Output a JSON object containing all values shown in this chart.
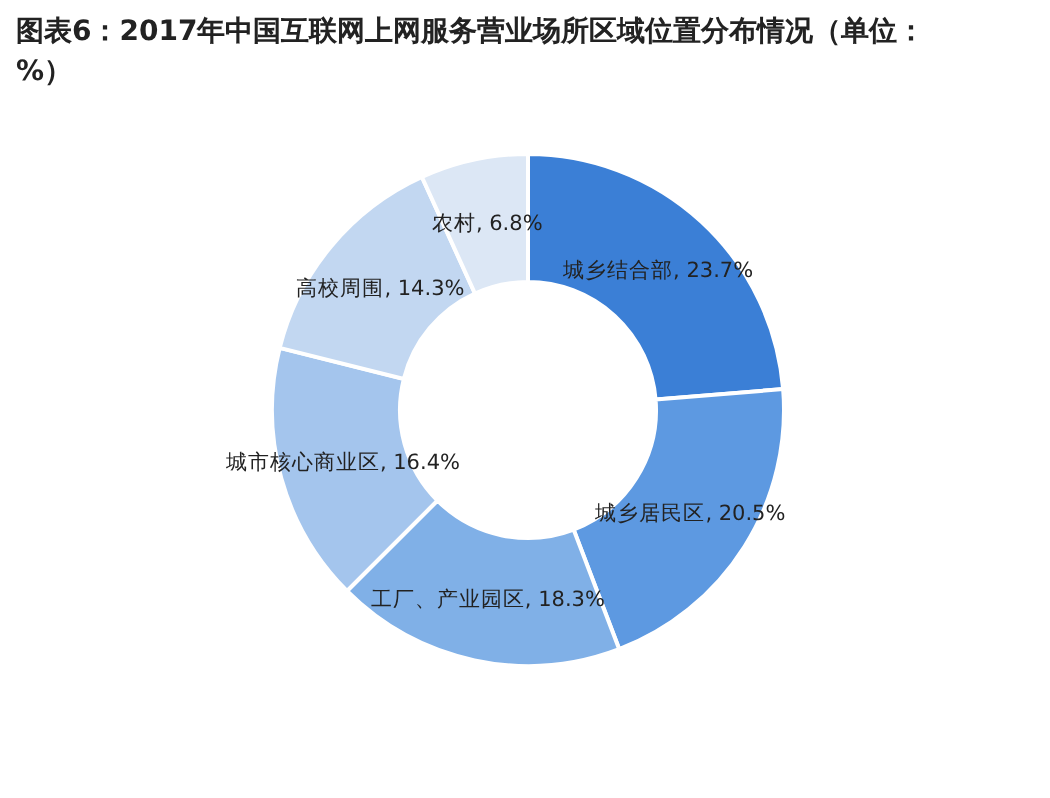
{
  "chart_data": {
    "type": "donut",
    "title": "图表6：2017年中国互联网上网服务营业场所区域位置分布情况（单位：%）",
    "categories": [
      "城乡结合部",
      "城乡居民区",
      "工厂、产业园区",
      "城市核心商业区",
      "高校周围",
      "农村"
    ],
    "values": [
      23.7,
      20.5,
      18.3,
      16.4,
      14.3,
      6.8
    ],
    "colors": [
      "#3b7fd6",
      "#5d99e1",
      "#80b0e7",
      "#a4c5ed",
      "#c2d7f1",
      "#dce7f5"
    ],
    "value_labels": [
      ", 23.7%",
      ", 20.5%",
      ", 18.3%",
      ", 16.4%",
      ", 14.3%",
      ", 6.8%"
    ]
  }
}
